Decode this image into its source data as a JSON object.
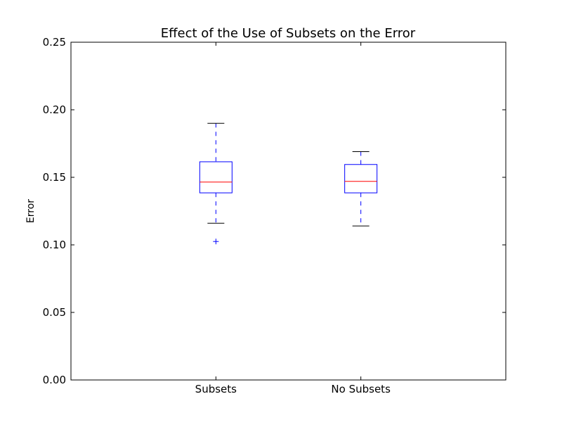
{
  "chart_data": {
    "type": "box",
    "title": "Effect of the Use of Subsets on the Error",
    "xlabel": "",
    "ylabel": "Error",
    "ylim": [
      0.0,
      0.25
    ],
    "yticks": [
      0.0,
      0.05,
      0.1,
      0.15,
      0.2,
      0.25
    ],
    "ytick_labels": [
      "0.00",
      "0.05",
      "0.10",
      "0.15",
      "0.20",
      "0.25"
    ],
    "categories": [
      "Subsets",
      "No Subsets"
    ],
    "boxes": [
      {
        "label": "Subsets",
        "whisker_low": 0.116,
        "q1": 0.1385,
        "median": 0.1465,
        "q3": 0.1615,
        "whisker_high": 0.19,
        "outliers": [
          0.1025
        ]
      },
      {
        "label": "No Subsets",
        "whisker_low": 0.114,
        "q1": 0.1385,
        "median": 0.147,
        "q3": 0.1595,
        "whisker_high": 0.169,
        "outliers": []
      }
    ],
    "grid": false,
    "colors": {
      "box": "#0000ff",
      "median": "#ff0000",
      "whisker_cap": "#000000",
      "flier": "#0000ff",
      "axis": "#000000"
    }
  }
}
